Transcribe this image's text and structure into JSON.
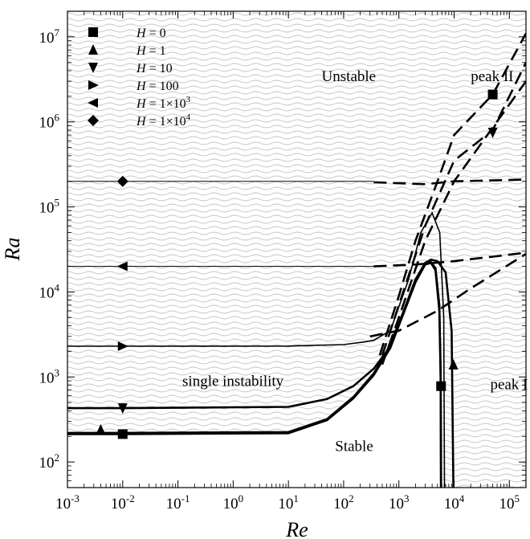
{
  "chart_data": {
    "type": "line",
    "title": "",
    "xlabel": "Re",
    "ylabel": "Ra",
    "xscale": "log",
    "yscale": "log",
    "xlim": [
      0.001,
      200000
    ],
    "ylim": [
      50,
      20000000
    ],
    "x_ticks": [
      {
        "base": "10",
        "exp": "-3",
        "value": 0.001
      },
      {
        "base": "10",
        "exp": "-2",
        "value": 0.01
      },
      {
        "base": "10",
        "exp": "-1",
        "value": 0.1
      },
      {
        "base": "10",
        "exp": "0",
        "value": 1
      },
      {
        "base": "10",
        "exp": "1",
        "value": 10
      },
      {
        "base": "10",
        "exp": "2",
        "value": 100
      },
      {
        "base": "10",
        "exp": "3",
        "value": 1000
      },
      {
        "base": "10",
        "exp": "4",
        "value": 10000
      },
      {
        "base": "10",
        "exp": "5",
        "value": 100000
      }
    ],
    "y_ticks": [
      {
        "base": "10",
        "exp": "2",
        "value": 100
      },
      {
        "base": "10",
        "exp": "3",
        "value": 1000
      },
      {
        "base": "10",
        "exp": "4",
        "value": 10000
      },
      {
        "base": "10",
        "exp": "5",
        "value": 100000
      },
      {
        "base": "10",
        "exp": "6",
        "value": 1000000
      },
      {
        "base": "10",
        "exp": "7",
        "value": 10000000
      }
    ],
    "legend": {
      "placement": "top-left",
      "entries": [
        {
          "var": "H",
          "eq": " = ",
          "val": "0",
          "marker": "square"
        },
        {
          "var": "H",
          "eq": " = ",
          "val": "1",
          "marker": "triangle-up"
        },
        {
          "var": "H",
          "eq": " = ",
          "val": "10",
          "marker": "triangle-down"
        },
        {
          "var": "H",
          "eq": " = ",
          "val": "100",
          "marker": "triangle-right"
        },
        {
          "var": "H",
          "eq": " = ",
          "val": "1×10",
          "sup": "3",
          "marker": "triangle-left"
        },
        {
          "var": "H",
          "eq": " = ",
          "val": "1×10",
          "sup": "4",
          "marker": "diamond"
        }
      ]
    },
    "annotations": [
      {
        "text": "Unstable",
        "x": 40,
        "y": 3000000
      },
      {
        "text": "peak II",
        "x": 20000,
        "y": 3000000
      },
      {
        "text": "single instability",
        "x": 0.12,
        "y": 780
      },
      {
        "text": "Stable",
        "x": 70,
        "y": 135
      },
      {
        "text": "peak I",
        "x": 45000,
        "y": 720
      }
    ],
    "series": [
      {
        "marker": "square",
        "style": "solid",
        "points": [
          [
            0.001,
            213
          ],
          [
            0.01,
            213
          ],
          [
            10,
            218
          ],
          [
            50,
            310
          ],
          [
            150,
            560
          ],
          [
            350,
            1050
          ],
          [
            700,
            2200
          ],
          [
            1200,
            5500
          ],
          [
            2000,
            13000
          ],
          [
            3000,
            21000
          ],
          [
            3800,
            22500
          ],
          [
            4600,
            19000
          ],
          [
            5400,
            7000
          ],
          [
            5700,
            1200
          ],
          [
            5800,
            50
          ]
        ]
      },
      {
        "marker": "triangle-up",
        "style": "solid",
        "points": [
          [
            0.001,
            220
          ],
          [
            0.01,
            220
          ],
          [
            10,
            225
          ],
          [
            50,
            320
          ],
          [
            150,
            580
          ],
          [
            350,
            1100
          ],
          [
            700,
            2300
          ],
          [
            1200,
            5800
          ],
          [
            2000,
            14000
          ],
          [
            3000,
            22000
          ],
          [
            3800,
            24000
          ],
          [
            5000,
            23000
          ],
          [
            7000,
            17000
          ],
          [
            9000,
            3500
          ],
          [
            9700,
            50
          ]
        ]
      },
      {
        "marker": "triangle-down",
        "style": "solid",
        "points": [
          [
            0.001,
            430
          ],
          [
            0.01,
            430
          ],
          [
            10,
            445
          ],
          [
            50,
            550
          ],
          [
            150,
            780
          ],
          [
            350,
            1250
          ],
          [
            600,
            2000
          ],
          [
            1200,
            5500
          ],
          [
            2000,
            14000
          ],
          [
            3000,
            21000
          ],
          [
            3800,
            22000
          ],
          [
            4600,
            18000
          ],
          [
            5400,
            6000
          ],
          [
            5700,
            1000
          ],
          [
            5800,
            50
          ]
        ]
      },
      {
        "marker": "triangle-right",
        "style": "solid",
        "points": [
          [
            0.001,
            2300
          ],
          [
            0.01,
            2300
          ],
          [
            10,
            2310
          ],
          [
            100,
            2400
          ],
          [
            250,
            2600
          ],
          [
            350,
            2700
          ],
          [
            700,
            3500
          ],
          [
            1500,
            14000
          ],
          [
            2500,
            50000
          ],
          [
            4000,
            85000
          ],
          [
            5500,
            50000
          ],
          [
            6500,
            5000
          ],
          [
            6700,
            50
          ]
        ]
      },
      {
        "marker": "triangle-left",
        "style": "solid",
        "points": [
          [
            0.001,
            20000
          ],
          [
            0.01,
            20000
          ],
          [
            350,
            20000
          ]
        ]
      },
      {
        "marker": "diamond",
        "style": "solid",
        "points": [
          [
            0.001,
            200000
          ],
          [
            0.01,
            200000
          ],
          [
            350,
            200000
          ]
        ]
      },
      {
        "style": "dashed",
        "points": [
          [
            450,
            1800
          ],
          [
            1000,
            9000
          ],
          [
            2000,
            40000
          ],
          [
            5000,
            200000
          ],
          [
            10000,
            700000
          ],
          [
            50000,
            2100000
          ],
          [
            200000,
            11000000
          ]
        ]
      },
      {
        "style": "dashed",
        "points": [
          [
            500,
            1800
          ],
          [
            1000,
            7000
          ],
          [
            3000,
            60000
          ],
          [
            10000,
            350000
          ],
          [
            50000,
            800000
          ],
          [
            200000,
            5000000
          ]
        ]
      },
      {
        "style": "dashed",
        "points": [
          [
            500,
            1400
          ],
          [
            1000,
            5000
          ],
          [
            3000,
            40000
          ],
          [
            10000,
            200000
          ],
          [
            200000,
            3000000
          ]
        ]
      },
      {
        "style": "dashed",
        "points": [
          [
            300,
            3000
          ],
          [
            1000,
            3500
          ],
          [
            5000,
            6000
          ],
          [
            20000,
            11000
          ],
          [
            200000,
            28000
          ]
        ]
      },
      {
        "style": "dashed",
        "points": [
          [
            350,
            20000
          ],
          [
            2000,
            21000
          ],
          [
            10000,
            23000
          ],
          [
            50000,
            26000
          ],
          [
            200000,
            29000
          ]
        ]
      },
      {
        "style": "dashed",
        "points": [
          [
            350,
            195000
          ],
          [
            3000,
            185000
          ],
          [
            10000,
            200000
          ],
          [
            50000,
            205000
          ],
          [
            200000,
            210000
          ]
        ]
      }
    ],
    "markers": [
      {
        "shape": "square",
        "x": 0.01,
        "y": 213
      },
      {
        "shape": "triangle-up",
        "x": 0.004,
        "y": 240
      },
      {
        "shape": "triangle-down",
        "x": 0.01,
        "y": 430
      },
      {
        "shape": "triangle-right",
        "x": 0.01,
        "y": 2300
      },
      {
        "shape": "triangle-left",
        "x": 0.01,
        "y": 20000
      },
      {
        "shape": "diamond",
        "x": 0.01,
        "y": 200000
      },
      {
        "shape": "square",
        "x": 5800,
        "y": 780
      },
      {
        "shape": "triangle-up",
        "x": 9700,
        "y": 1400
      },
      {
        "shape": "square",
        "x": 50000,
        "y": 2100000
      },
      {
        "shape": "triangle-down",
        "x": 50000,
        "y": 750000
      }
    ],
    "grid": false
  }
}
